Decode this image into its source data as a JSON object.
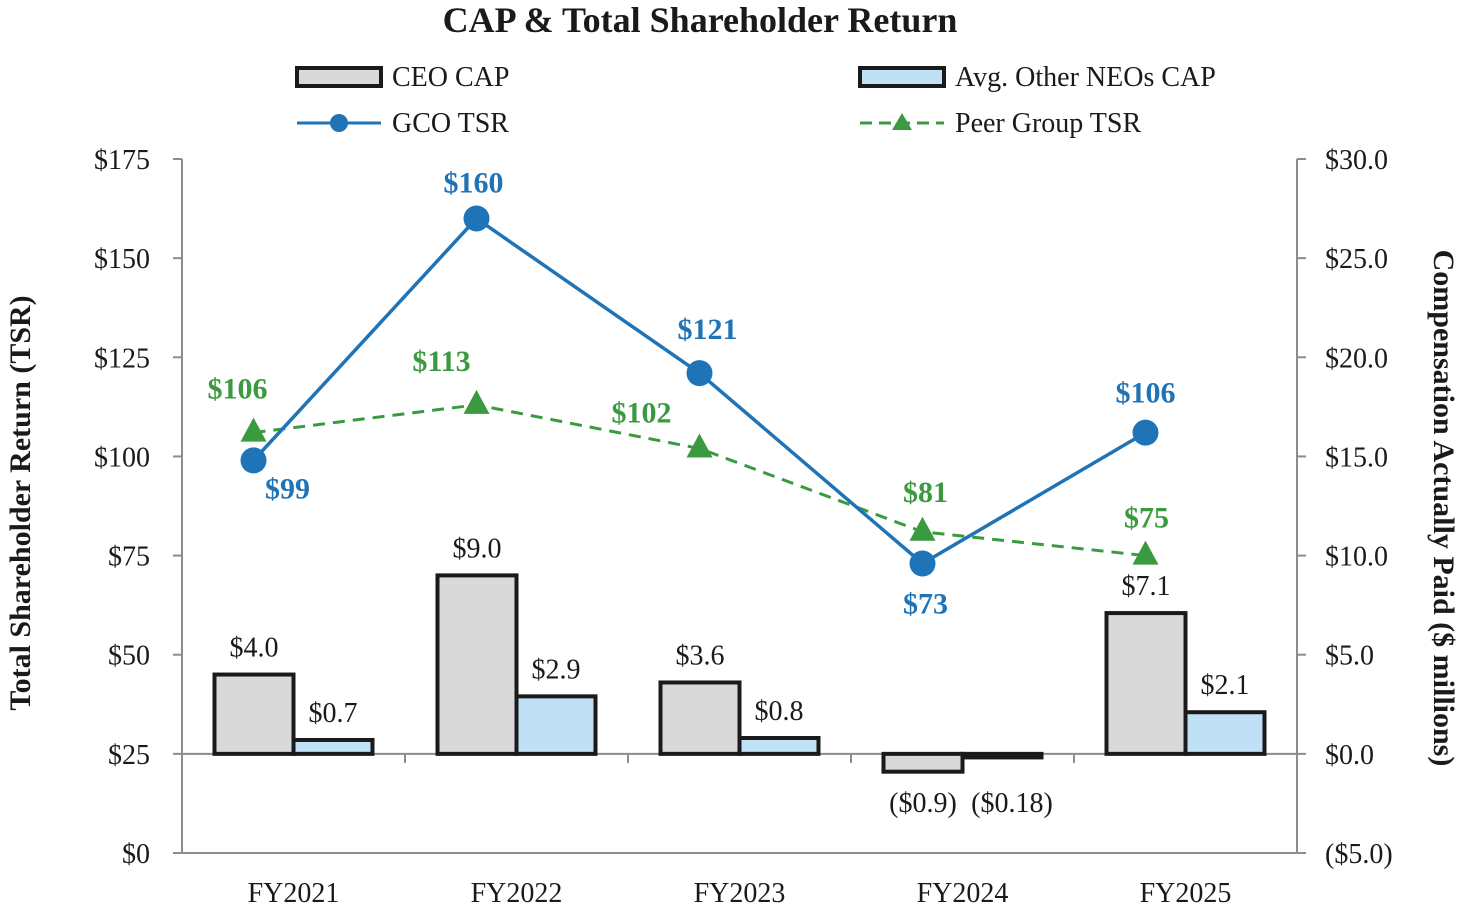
{
  "colors": {
    "gco": "#1f73b7",
    "peer": "#3a9a40",
    "ceo_bar": "#d9d9d9",
    "neo_bar": "#bfe0f5",
    "bar_stroke": "#1a1a1a",
    "axis": "#8c8c8c",
    "negative_tick": "#e0201b"
  },
  "chart_data": {
    "type": "bar+line",
    "title": "CAP & Total Shareholder Return",
    "categories": [
      "FY2021",
      "FY2022",
      "FY2023",
      "FY2024",
      "FY2025"
    ],
    "legend": {
      "ceo_cap": "CEO CAP",
      "neo_cap": "Avg. Other NEOs CAP",
      "gco_tsr": "GCO TSR",
      "peer_tsr": "Peer Group TSR"
    },
    "y_left": {
      "label": "Total Shareholder Return (TSR)",
      "lim": [
        0,
        175
      ],
      "ticks": [
        "$175",
        "$150",
        "$125",
        "$100",
        "$75",
        "$50",
        "$25",
        "$0"
      ],
      "tick_values": [
        175,
        150,
        125,
        100,
        75,
        50,
        25,
        0
      ]
    },
    "y_right": {
      "label": "Compensation Actually Paid ($ millions)",
      "lim": [
        -5,
        30
      ],
      "ticks": [
        "$30.0",
        "$25.0",
        "$20.0",
        "$15.0",
        "$10.0",
        "$5.0",
        "$0.0",
        "($5.0)"
      ],
      "tick_values": [
        30,
        25,
        20,
        15,
        10,
        5,
        0,
        -5
      ]
    },
    "bar_series": [
      {
        "name": "CEO CAP",
        "axis": "right",
        "values": [
          4.0,
          9.0,
          3.6,
          -0.9,
          7.1
        ],
        "labels": [
          "$4.0",
          "$9.0",
          "$3.6",
          "($0.9)",
          "$7.1"
        ]
      },
      {
        "name": "Avg. Other NEOs CAP",
        "axis": "right",
        "values": [
          0.7,
          2.9,
          0.8,
          -0.18,
          2.1
        ],
        "labels": [
          "$0.7",
          "$2.9",
          "$0.8",
          "($0.18)",
          "$2.1"
        ]
      }
    ],
    "line_series": [
      {
        "name": "GCO TSR",
        "axis": "left",
        "style": "solid",
        "marker": "circle",
        "values": [
          99,
          160,
          121,
          73,
          106
        ],
        "labels": [
          "$99",
          "$160",
          "$121",
          "$73",
          "$106"
        ]
      },
      {
        "name": "Peer Group TSR",
        "axis": "left",
        "style": "dashed",
        "marker": "triangle",
        "values": [
          106,
          113,
          102,
          81,
          75
        ],
        "labels": [
          "$106",
          "$113",
          "$102",
          "$81",
          "$75"
        ]
      }
    ]
  }
}
